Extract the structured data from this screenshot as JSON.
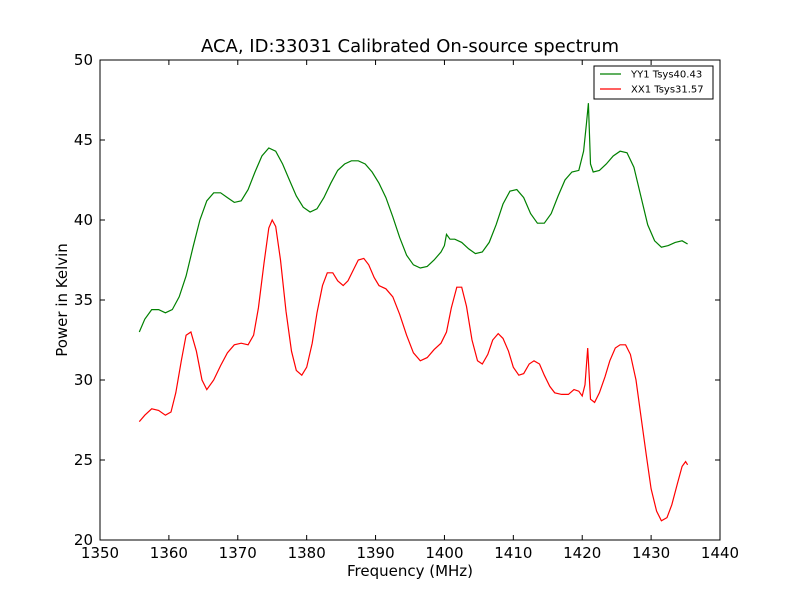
{
  "chart_data": {
    "type": "line",
    "title": "ACA, ID:33031 Calibrated On-source spectrum",
    "xlabel": "Frequency (MHz)",
    "ylabel": "Power in Kelvin",
    "xlim": [
      1350,
      1440
    ],
    "ylim": [
      20,
      50
    ],
    "xticks": [
      1350,
      1360,
      1370,
      1380,
      1390,
      1400,
      1410,
      1420,
      1430,
      1440
    ],
    "yticks": [
      20,
      25,
      30,
      35,
      40,
      45,
      50
    ],
    "xtick_labels": [
      "1350",
      "1360",
      "1370",
      "1380",
      "1390",
      "1400",
      "1410",
      "1420",
      "1430",
      "1440"
    ],
    "ytick_labels": [
      "20",
      "25",
      "30",
      "35",
      "40",
      "45",
      "50"
    ],
    "grid": false,
    "legend_position": "top-right",
    "series": [
      {
        "name": "YY1 Tsys40.43",
        "color": "#008000",
        "points": [
          [
            1355.7,
            33.0
          ],
          [
            1356.5,
            33.8
          ],
          [
            1357.5,
            34.4
          ],
          [
            1358.5,
            34.4
          ],
          [
            1359.5,
            34.2
          ],
          [
            1360.5,
            34.4
          ],
          [
            1361.5,
            35.2
          ],
          [
            1362.5,
            36.5
          ],
          [
            1363.5,
            38.3
          ],
          [
            1364.5,
            40.0
          ],
          [
            1365.5,
            41.2
          ],
          [
            1366.5,
            41.7
          ],
          [
            1367.5,
            41.7
          ],
          [
            1368.5,
            41.4
          ],
          [
            1369.5,
            41.1
          ],
          [
            1370.5,
            41.2
          ],
          [
            1371.5,
            41.9
          ],
          [
            1372.5,
            43.0
          ],
          [
            1373.5,
            44.0
          ],
          [
            1374.5,
            44.5
          ],
          [
            1375.5,
            44.3
          ],
          [
            1376.5,
            43.5
          ],
          [
            1377.5,
            42.5
          ],
          [
            1378.5,
            41.5
          ],
          [
            1379.5,
            40.8
          ],
          [
            1380.5,
            40.5
          ],
          [
            1381.5,
            40.7
          ],
          [
            1382.5,
            41.4
          ],
          [
            1383.5,
            42.3
          ],
          [
            1384.5,
            43.1
          ],
          [
            1385.5,
            43.5
          ],
          [
            1386.5,
            43.7
          ],
          [
            1387.5,
            43.7
          ],
          [
            1388.5,
            43.5
          ],
          [
            1389.5,
            43.0
          ],
          [
            1390.5,
            42.3
          ],
          [
            1391.5,
            41.4
          ],
          [
            1392.5,
            40.2
          ],
          [
            1393.5,
            38.9
          ],
          [
            1394.5,
            37.8
          ],
          [
            1395.5,
            37.2
          ],
          [
            1396.5,
            37.0
          ],
          [
            1397.5,
            37.1
          ],
          [
            1398.5,
            37.5
          ],
          [
            1399.5,
            38.0
          ],
          [
            1400.0,
            38.4
          ],
          [
            1400.3,
            39.1
          ],
          [
            1400.8,
            38.8
          ],
          [
            1401.5,
            38.8
          ],
          [
            1402.5,
            38.6
          ],
          [
            1403.5,
            38.2
          ],
          [
            1404.5,
            37.9
          ],
          [
            1405.5,
            38.0
          ],
          [
            1406.5,
            38.6
          ],
          [
            1407.5,
            39.7
          ],
          [
            1408.5,
            41.0
          ],
          [
            1409.5,
            41.8
          ],
          [
            1410.5,
            41.9
          ],
          [
            1411.5,
            41.4
          ],
          [
            1412.5,
            40.4
          ],
          [
            1413.5,
            39.8
          ],
          [
            1414.5,
            39.8
          ],
          [
            1415.5,
            40.4
          ],
          [
            1416.5,
            41.5
          ],
          [
            1417.5,
            42.5
          ],
          [
            1418.5,
            43.0
          ],
          [
            1419.5,
            43.1
          ],
          [
            1420.2,
            44.3
          ],
          [
            1420.6,
            46.0
          ],
          [
            1420.9,
            47.3
          ],
          [
            1421.2,
            43.5
          ],
          [
            1421.6,
            43.0
          ],
          [
            1422.5,
            43.1
          ],
          [
            1423.5,
            43.5
          ],
          [
            1424.5,
            44.0
          ],
          [
            1425.5,
            44.3
          ],
          [
            1426.5,
            44.2
          ],
          [
            1427.5,
            43.3
          ],
          [
            1428.5,
            41.5
          ],
          [
            1429.5,
            39.7
          ],
          [
            1430.5,
            38.7
          ],
          [
            1431.5,
            38.3
          ],
          [
            1432.5,
            38.4
          ],
          [
            1433.5,
            38.6
          ],
          [
            1434.5,
            38.7
          ],
          [
            1435.3,
            38.5
          ]
        ]
      },
      {
        "name": "XX1 Tsys31.57",
        "color": "#ff0000",
        "points": [
          [
            1355.7,
            27.4
          ],
          [
            1356.5,
            27.8
          ],
          [
            1357.5,
            28.2
          ],
          [
            1358.5,
            28.1
          ],
          [
            1359.5,
            27.8
          ],
          [
            1360.3,
            28.0
          ],
          [
            1361.0,
            29.2
          ],
          [
            1361.8,
            31.2
          ],
          [
            1362.5,
            32.8
          ],
          [
            1363.2,
            33.0
          ],
          [
            1364.0,
            31.8
          ],
          [
            1364.8,
            30.0
          ],
          [
            1365.5,
            29.4
          ],
          [
            1366.5,
            30.0
          ],
          [
            1367.5,
            30.9
          ],
          [
            1368.5,
            31.7
          ],
          [
            1369.5,
            32.2
          ],
          [
            1370.5,
            32.3
          ],
          [
            1371.5,
            32.2
          ],
          [
            1372.3,
            32.8
          ],
          [
            1373.0,
            34.5
          ],
          [
            1373.8,
            37.3
          ],
          [
            1374.5,
            39.5
          ],
          [
            1375.0,
            40.0
          ],
          [
            1375.5,
            39.6
          ],
          [
            1376.2,
            37.5
          ],
          [
            1377.0,
            34.3
          ],
          [
            1377.8,
            31.8
          ],
          [
            1378.5,
            30.6
          ],
          [
            1379.3,
            30.3
          ],
          [
            1380.0,
            30.8
          ],
          [
            1380.8,
            32.3
          ],
          [
            1381.5,
            34.2
          ],
          [
            1382.3,
            35.9
          ],
          [
            1383.0,
            36.7
          ],
          [
            1383.8,
            36.7
          ],
          [
            1384.5,
            36.2
          ],
          [
            1385.3,
            35.9
          ],
          [
            1386.0,
            36.2
          ],
          [
            1386.8,
            36.9
          ],
          [
            1387.5,
            37.5
          ],
          [
            1388.3,
            37.6
          ],
          [
            1389.0,
            37.2
          ],
          [
            1389.8,
            36.4
          ],
          [
            1390.5,
            35.9
          ],
          [
            1391.5,
            35.7
          ],
          [
            1392.5,
            35.2
          ],
          [
            1393.5,
            34.1
          ],
          [
            1394.5,
            32.8
          ],
          [
            1395.5,
            31.7
          ],
          [
            1396.5,
            31.2
          ],
          [
            1397.5,
            31.4
          ],
          [
            1398.5,
            31.9
          ],
          [
            1399.5,
            32.3
          ],
          [
            1400.3,
            33.0
          ],
          [
            1401.0,
            34.5
          ],
          [
            1401.8,
            35.8
          ],
          [
            1402.5,
            35.8
          ],
          [
            1403.2,
            34.6
          ],
          [
            1404.0,
            32.5
          ],
          [
            1404.8,
            31.2
          ],
          [
            1405.5,
            31.0
          ],
          [
            1406.3,
            31.6
          ],
          [
            1407.0,
            32.5
          ],
          [
            1407.8,
            32.9
          ],
          [
            1408.5,
            32.6
          ],
          [
            1409.3,
            31.8
          ],
          [
            1410.0,
            30.8
          ],
          [
            1410.8,
            30.3
          ],
          [
            1411.5,
            30.4
          ],
          [
            1412.3,
            31.0
          ],
          [
            1413.0,
            31.2
          ],
          [
            1413.8,
            31.0
          ],
          [
            1414.5,
            30.3
          ],
          [
            1415.3,
            29.6
          ],
          [
            1416.0,
            29.2
          ],
          [
            1417.0,
            29.1
          ],
          [
            1418.0,
            29.1
          ],
          [
            1418.8,
            29.4
          ],
          [
            1419.5,
            29.3
          ],
          [
            1420.0,
            29.0
          ],
          [
            1420.4,
            29.7
          ],
          [
            1420.8,
            32.0
          ],
          [
            1421.2,
            28.8
          ],
          [
            1421.8,
            28.6
          ],
          [
            1422.5,
            29.2
          ],
          [
            1423.3,
            30.2
          ],
          [
            1424.0,
            31.2
          ],
          [
            1424.8,
            32.0
          ],
          [
            1425.5,
            32.2
          ],
          [
            1426.3,
            32.2
          ],
          [
            1427.0,
            31.6
          ],
          [
            1427.8,
            30.0
          ],
          [
            1428.5,
            27.8
          ],
          [
            1429.3,
            25.3
          ],
          [
            1430.0,
            23.2
          ],
          [
            1430.8,
            21.8
          ],
          [
            1431.5,
            21.2
          ],
          [
            1432.3,
            21.4
          ],
          [
            1433.0,
            22.2
          ],
          [
            1433.8,
            23.5
          ],
          [
            1434.5,
            24.6
          ],
          [
            1435.0,
            24.9
          ],
          [
            1435.3,
            24.7
          ]
        ]
      }
    ]
  }
}
